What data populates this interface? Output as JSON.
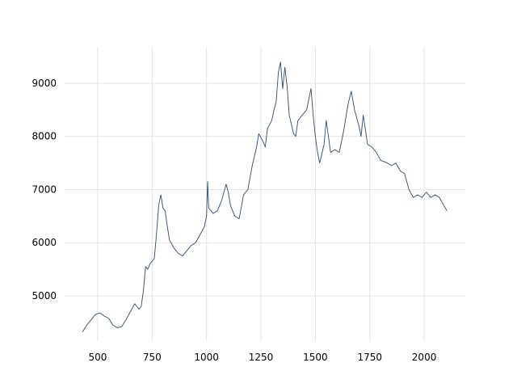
{
  "chart_data": {
    "type": "line",
    "x": [
      430,
      450,
      470,
      490,
      510,
      530,
      550,
      570,
      590,
      610,
      630,
      650,
      670,
      690,
      700,
      710,
      720,
      730,
      740,
      750,
      760,
      770,
      780,
      790,
      800,
      810,
      820,
      830,
      850,
      870,
      890,
      910,
      930,
      950,
      970,
      990,
      1000,
      1005,
      1010,
      1030,
      1050,
      1070,
      1090,
      1100,
      1110,
      1130,
      1150,
      1170,
      1190,
      1210,
      1230,
      1240,
      1260,
      1270,
      1280,
      1300,
      1310,
      1320,
      1330,
      1340,
      1350,
      1360,
      1370,
      1380,
      1400,
      1410,
      1420,
      1440,
      1460,
      1470,
      1480,
      1490,
      1500,
      1510,
      1520,
      1540,
      1550,
      1560,
      1570,
      1590,
      1610,
      1630,
      1650,
      1665,
      1680,
      1700,
      1710,
      1720,
      1740,
      1760,
      1780,
      1800,
      1830,
      1850,
      1870,
      1890,
      1910,
      1930,
      1950,
      1970,
      1990,
      2010,
      2030,
      2050,
      2070,
      2090,
      2105
    ],
    "series": [
      {
        "color": "#2f4b6c",
        "values": [
          4320,
          4450,
          4550,
          4650,
          4680,
          4620,
          4580,
          4450,
          4400,
          4420,
          4550,
          4700,
          4850,
          4750,
          4800,
          5100,
          5550,
          5500,
          5600,
          5650,
          5700,
          6150,
          6700,
          6900,
          6650,
          6600,
          6300,
          6050,
          5900,
          5800,
          5750,
          5850,
          5950,
          6000,
          6150,
          6300,
          6500,
          7150,
          6650,
          6550,
          6600,
          6800,
          7100,
          6950,
          6700,
          6500,
          6450,
          6900,
          7000,
          7450,
          7800,
          8050,
          7900,
          7800,
          8150,
          8300,
          8500,
          8650,
          9200,
          9400,
          8900,
          9300,
          8950,
          8400,
          8050,
          8000,
          8300,
          8400,
          8500,
          8700,
          8900,
          8400,
          8000,
          7700,
          7500,
          7850,
          8300,
          8000,
          7700,
          7750,
          7700,
          8100,
          8600,
          8850,
          8500,
          8200,
          8000,
          8400,
          7850,
          7800,
          7700,
          7550,
          7500,
          7450,
          7500,
          7350,
          7300,
          7000,
          6850,
          6900,
          6850,
          6950,
          6850,
          6900,
          6850,
          6700,
          6600
        ]
      }
    ],
    "xlim": [
      348,
      2189
    ],
    "ylim": [
      4148,
      9684
    ],
    "xticks": [
      500,
      750,
      1000,
      1250,
      1500,
      1750,
      2000
    ],
    "yticks": [
      5000,
      6000,
      7000,
      8000,
      9000
    ],
    "grid": true
  }
}
